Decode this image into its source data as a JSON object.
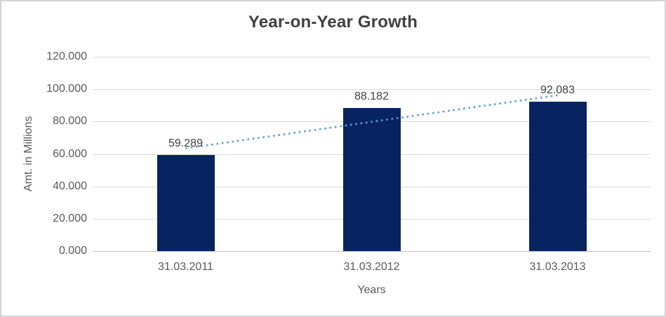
{
  "chart_data": {
    "type": "bar",
    "title": "Year-on-Year Growth",
    "xlabel": "Years",
    "ylabel": "Amt. in Millions",
    "categories": [
      "31.03.2011",
      "31.03.2012",
      "31.03.2013"
    ],
    "values": [
      59.289,
      88.182,
      92.083
    ],
    "value_labels": [
      "59.289",
      "88.182",
      "92.083"
    ],
    "ylim": [
      0,
      120
    ],
    "y_ticks": [
      {
        "value": 0,
        "label": "0.000"
      },
      {
        "value": 20,
        "label": "20.000"
      },
      {
        "value": 40,
        "label": "40.000"
      },
      {
        "value": 60,
        "label": "60.000"
      },
      {
        "value": 80,
        "label": "80.000"
      },
      {
        "value": 100,
        "label": "100.000"
      },
      {
        "value": 120,
        "label": "120.000"
      }
    ],
    "grid": true,
    "legend": "none",
    "trendline": {
      "type": "linear",
      "style": "dotted"
    }
  },
  "colors": {
    "bar_fill": "#082460",
    "trendline": "#5b9bd5",
    "gridline": "#d9d9d9",
    "axis_line": "#bfbfbf",
    "title_text": "#3f3f3f",
    "axis_text": "#595959",
    "data_label_text": "#404040",
    "border": "#d4d4d4",
    "background": "#ffffff"
  }
}
